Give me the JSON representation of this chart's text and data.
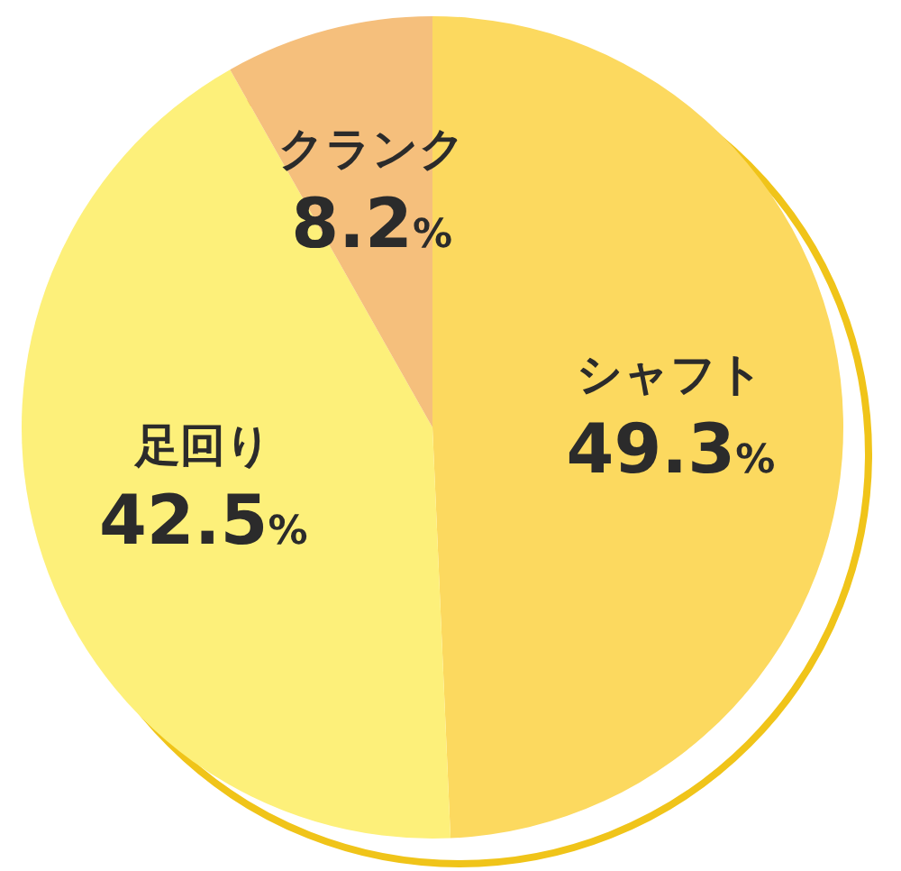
{
  "chart_data": {
    "type": "pie",
    "categories": [
      "シャフト",
      "足回り",
      "クランク"
    ],
    "values": [
      49.3,
      42.5,
      8.2
    ],
    "colors": [
      "#fcd95f",
      "#fdf07a",
      "#f5bf7c"
    ],
    "value_labels": [
      "49.3%",
      "42.5%",
      "8.2%"
    ],
    "legend": false
  }
}
